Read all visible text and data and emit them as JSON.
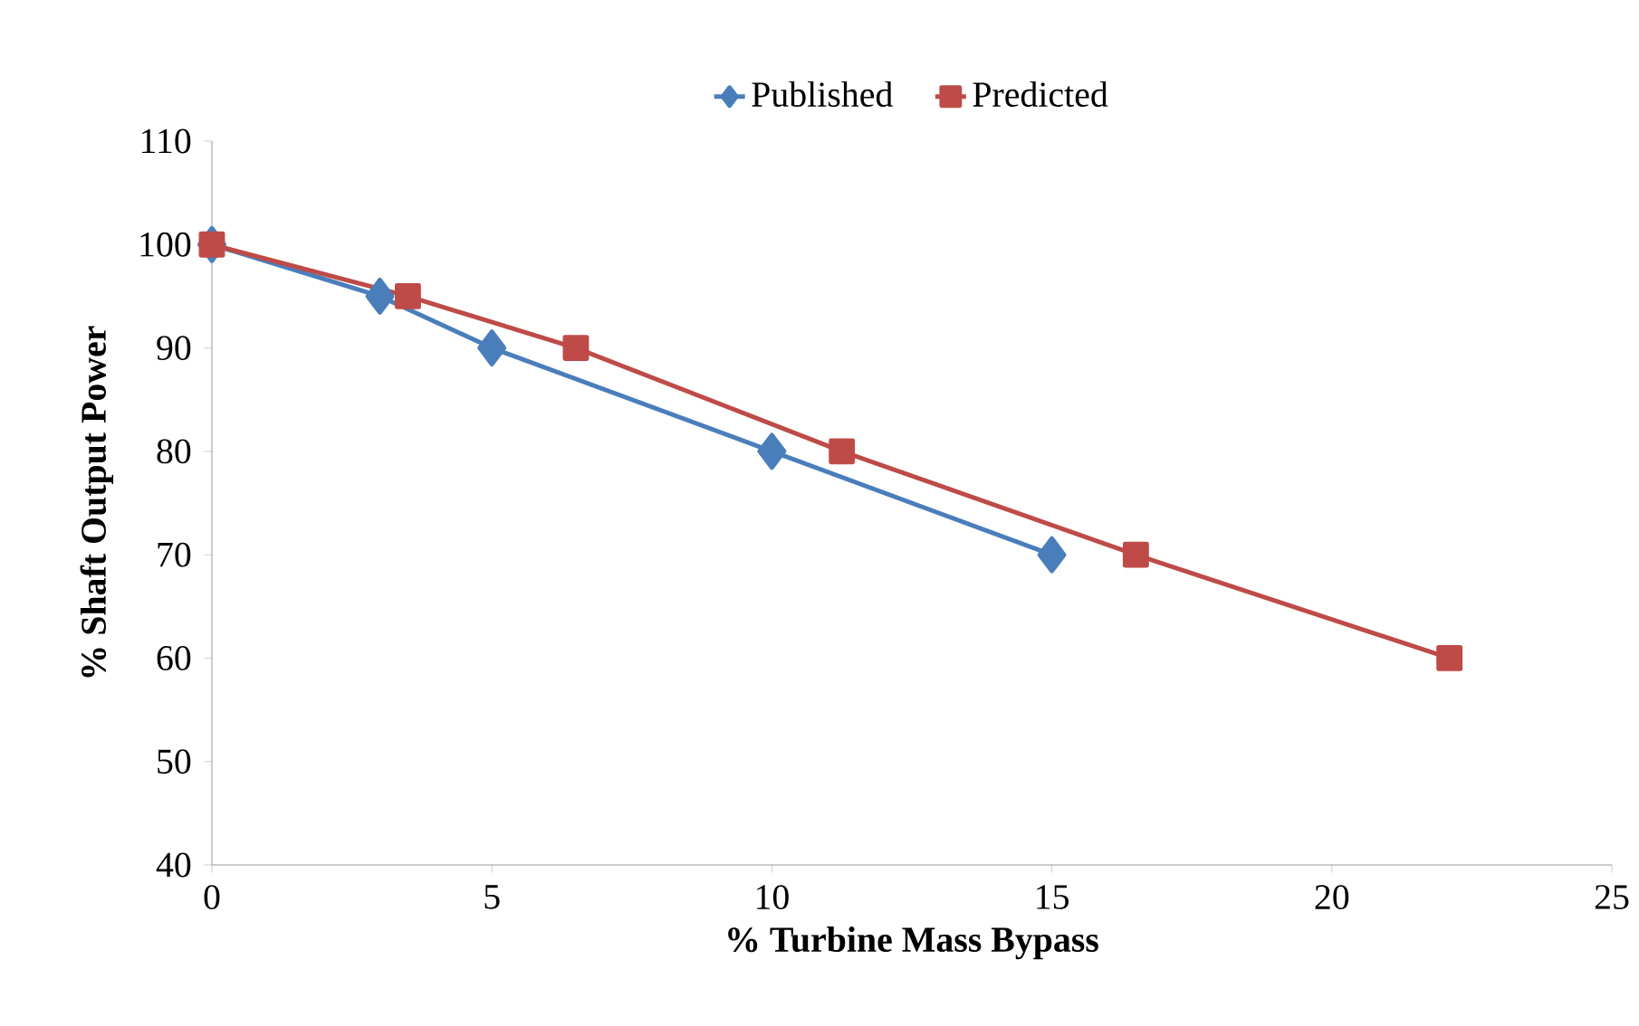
{
  "chart_data": {
    "type": "line",
    "xlabel": "% Turbine Mass Bypass",
    "ylabel": "% Shaft Output Power",
    "xlim": [
      0,
      25
    ],
    "ylim": [
      40,
      110
    ],
    "xticks": [
      0,
      5,
      10,
      15,
      20,
      25
    ],
    "yticks": [
      40,
      50,
      60,
      70,
      80,
      90,
      100,
      110
    ],
    "legend": "top",
    "line_style": "solid",
    "grid": false,
    "series": [
      {
        "name": "Published",
        "color": "#4a7ebb",
        "marker": "diamond",
        "x": [
          0,
          3,
          5,
          10,
          15
        ],
        "values": [
          100,
          95,
          90,
          80,
          70
        ]
      },
      {
        "name": "Predicted",
        "color": "#be4b48",
        "marker": "square",
        "x": [
          0,
          3.5,
          6.5,
          11.25,
          16.5,
          22.1
        ],
        "values": [
          100,
          95,
          90,
          80,
          70,
          60
        ]
      }
    ]
  }
}
